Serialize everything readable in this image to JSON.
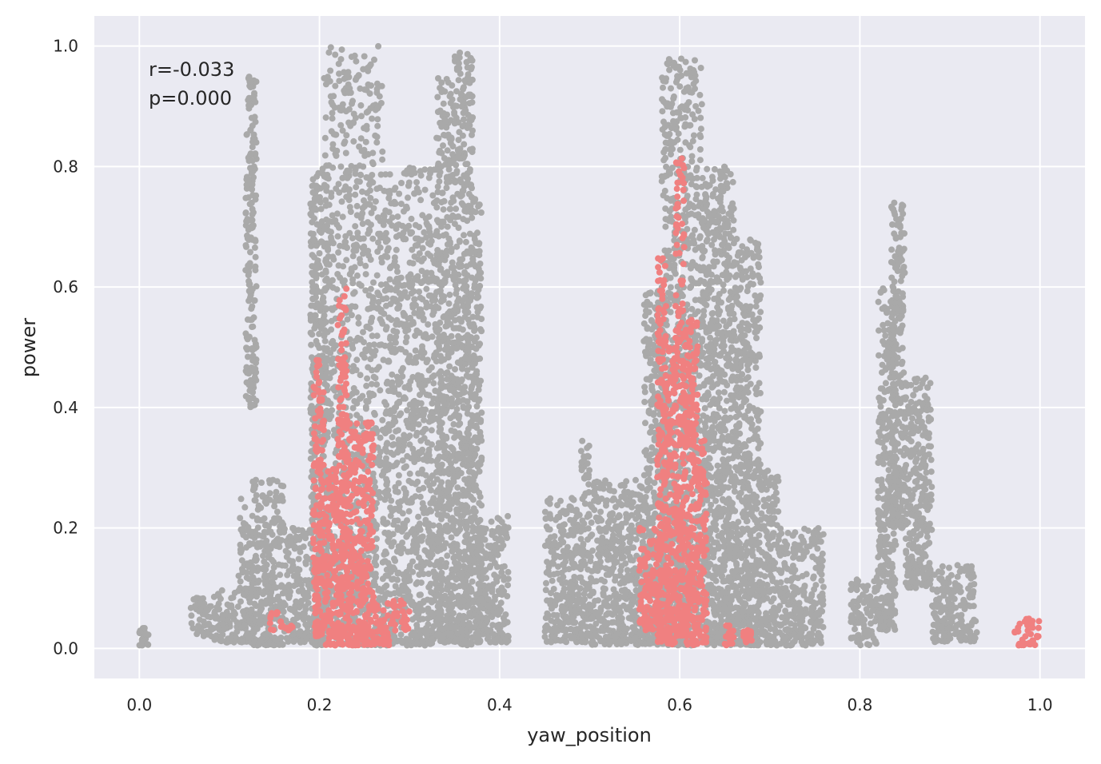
{
  "chart_data": {
    "type": "scatter",
    "xlabel": "yaw_position",
    "ylabel": "power",
    "xlim": [
      -0.05,
      1.05
    ],
    "ylim": [
      -0.05,
      1.05
    ],
    "xticks": [
      "0.0",
      "0.2",
      "0.4",
      "0.6",
      "0.8",
      "1.0"
    ],
    "yticks": [
      "0.0",
      "0.2",
      "0.4",
      "0.6",
      "0.8",
      "1.0"
    ],
    "grid": true,
    "annotations": [
      "r=-0.033",
      "p=0.000"
    ],
    "colors": {
      "background": "#EAEAF2",
      "grid": "#FFFFFF",
      "gray_points": "#A9A9A9",
      "red_points": "#F08080"
    },
    "series": [
      {
        "color": "#A9A9A9",
        "clusters": [
          [
            0.0,
            0.01,
            0.005,
            0.035
          ],
          [
            0.055,
            0.08,
            0.02,
            0.09
          ],
          [
            0.08,
            0.11,
            0.01,
            0.1
          ],
          [
            0.11,
            0.12,
            0.01,
            0.25
          ],
          [
            0.118,
            0.13,
            0.4,
            0.95
          ],
          [
            0.12,
            0.16,
            0.005,
            0.28
          ],
          [
            0.16,
            0.19,
            0.01,
            0.2
          ],
          [
            0.19,
            0.21,
            0.005,
            0.8
          ],
          [
            0.205,
            0.27,
            0.005,
            1.0
          ],
          [
            0.27,
            0.33,
            0.005,
            0.8
          ],
          [
            0.33,
            0.35,
            0.01,
            0.95
          ],
          [
            0.35,
            0.37,
            0.005,
            0.99
          ],
          [
            0.37,
            0.38,
            0.01,
            0.75
          ],
          [
            0.375,
            0.41,
            0.01,
            0.22
          ],
          [
            0.45,
            0.49,
            0.01,
            0.25
          ],
          [
            0.49,
            0.5,
            0.01,
            0.35
          ],
          [
            0.5,
            0.56,
            0.005,
            0.28
          ],
          [
            0.56,
            0.585,
            0.005,
            0.6
          ],
          [
            0.58,
            0.625,
            0.005,
            0.98
          ],
          [
            0.625,
            0.66,
            0.005,
            0.8
          ],
          [
            0.66,
            0.69,
            0.005,
            0.68
          ],
          [
            0.69,
            0.71,
            0.005,
            0.3
          ],
          [
            0.71,
            0.76,
            0.005,
            0.2
          ],
          [
            0.79,
            0.82,
            0.005,
            0.12
          ],
          [
            0.82,
            0.84,
            0.03,
            0.6
          ],
          [
            0.835,
            0.85,
            0.2,
            0.74
          ],
          [
            0.85,
            0.88,
            0.1,
            0.45
          ],
          [
            0.88,
            0.93,
            0.01,
            0.14
          ]
        ]
      },
      {
        "color": "#F08080",
        "clusters": [
          [
            0.145,
            0.17,
            0.03,
            0.06
          ],
          [
            0.193,
            0.205,
            0.02,
            0.48
          ],
          [
            0.205,
            0.22,
            0.005,
            0.3
          ],
          [
            0.22,
            0.23,
            0.005,
            0.6
          ],
          [
            0.23,
            0.26,
            0.005,
            0.38
          ],
          [
            0.26,
            0.28,
            0.005,
            0.08
          ],
          [
            0.28,
            0.3,
            0.03,
            0.08
          ],
          [
            0.555,
            0.58,
            0.03,
            0.2
          ],
          [
            0.575,
            0.585,
            0.01,
            0.65
          ],
          [
            0.585,
            0.595,
            0.005,
            0.5
          ],
          [
            0.595,
            0.605,
            0.02,
            0.82
          ],
          [
            0.605,
            0.62,
            0.005,
            0.55
          ],
          [
            0.62,
            0.63,
            0.01,
            0.35
          ],
          [
            0.65,
            0.66,
            0.005,
            0.04
          ],
          [
            0.67,
            0.68,
            0.01,
            0.03
          ],
          [
            0.97,
            1.0,
            0.005,
            0.05
          ]
        ]
      }
    ]
  }
}
